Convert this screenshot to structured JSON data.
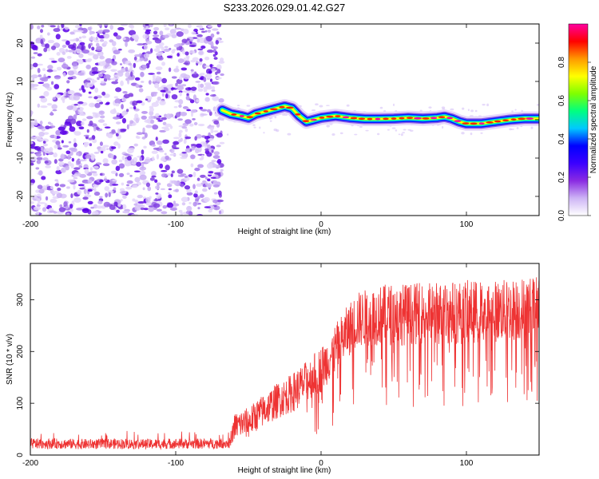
{
  "title": "S233.2026.029.01.42.G27",
  "chart_data": [
    {
      "type": "heatmap",
      "xlabel": "Height of straight line (km)",
      "ylabel": "Frequency (Hz)",
      "xlim": [
        -200,
        150
      ],
      "ylim": [
        -25,
        25
      ],
      "xticks": [
        -200,
        -100,
        0,
        100
      ],
      "yticks": [
        -20,
        -10,
        0,
        10,
        20
      ],
      "noise_region_x": [
        -200,
        -68
      ],
      "signal_ridge": {
        "x": [
          -68,
          -62,
          -55,
          -50,
          -45,
          -40,
          -35,
          -30,
          -25,
          -20,
          -15,
          -10,
          -5,
          0,
          10,
          20,
          30,
          40,
          50,
          60,
          70,
          80,
          85,
          90,
          95,
          100,
          110,
          120,
          130,
          140,
          150
        ],
        "freq": [
          2.5,
          1.5,
          1.0,
          0.5,
          1.5,
          2.0,
          2.5,
          3.0,
          3.5,
          3.0,
          1.0,
          -0.5,
          0.0,
          0.5,
          1.0,
          0.5,
          0.2,
          0.2,
          0.3,
          0.5,
          0.3,
          0.5,
          0.8,
          0.3,
          -0.5,
          -1.0,
          -1.0,
          -0.5,
          0.0,
          0.3,
          0.3
        ]
      },
      "colorbar": {
        "label": "Normalized spectral amplitude",
        "range": [
          0,
          1
        ],
        "ticks": [
          "0.0",
          "0.2",
          "0.4",
          "0.6",
          "0.8"
        ],
        "tick_values": [
          0.0,
          0.2,
          0.4,
          0.6,
          0.8
        ],
        "colors": [
          "#ffffff",
          "#cdb4f5",
          "#8a2be2",
          "#3b00ff",
          "#0000ff",
          "#00c8ff",
          "#00ff80",
          "#7fff00",
          "#ffff00",
          "#ff9900",
          "#ff0000",
          "#ff00a0"
        ]
      }
    },
    {
      "type": "line",
      "xlabel": "Height of straight line (km)",
      "ylabel": "SNR (10 * v/v)",
      "xlim": [
        -200,
        150
      ],
      "ylim": [
        0,
        370
      ],
      "xticks": [
        -200,
        -100,
        0,
        100
      ],
      "yticks": [
        0,
        100,
        200,
        300
      ],
      "color": "#ee3333",
      "envelope": {
        "x": [
          -200,
          -180,
          -160,
          -140,
          -120,
          -100,
          -80,
          -62,
          -60,
          -55,
          -50,
          -45,
          -40,
          -35,
          -30,
          -25,
          -20,
          -15,
          -10,
          -5,
          0,
          5,
          10,
          15,
          20,
          25,
          30,
          40,
          50,
          60,
          70,
          80,
          90,
          100,
          110,
          120,
          130,
          140,
          150
        ],
        "mean": [
          22,
          22,
          21,
          22,
          21,
          22,
          22,
          23,
          55,
          60,
          62,
          75,
          85,
          95,
          105,
          112,
          120,
          130,
          142,
          155,
          165,
          185,
          205,
          225,
          245,
          260,
          265,
          270,
          272,
          272,
          273,
          274,
          275,
          276,
          277,
          278,
          280,
          282,
          285
        ],
        "spread": [
          10,
          10,
          10,
          10,
          10,
          10,
          10,
          10,
          25,
          28,
          30,
          30,
          32,
          33,
          35,
          35,
          38,
          40,
          40,
          42,
          45,
          45,
          48,
          50,
          52,
          55,
          55,
          58,
          60,
          60,
          60,
          62,
          62,
          62,
          60,
          60,
          60,
          62,
          62
        ]
      }
    }
  ]
}
